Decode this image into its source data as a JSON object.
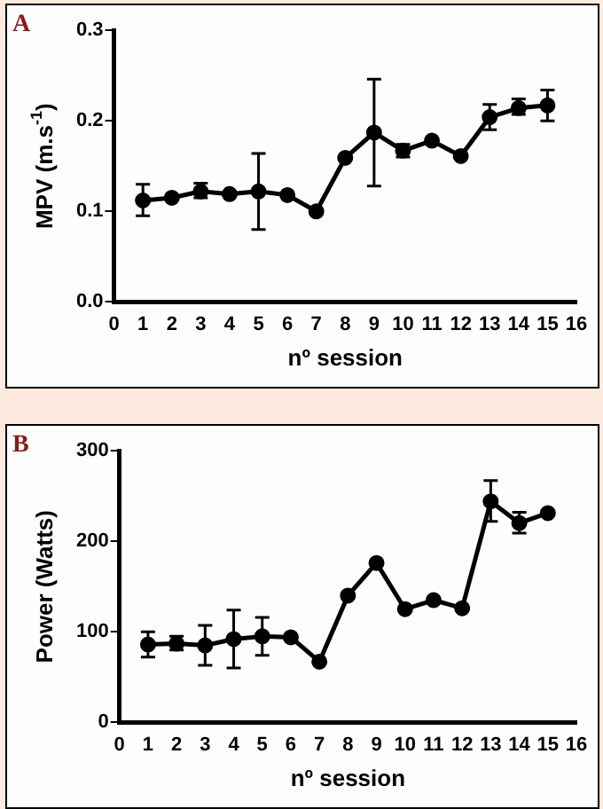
{
  "chart_data": [
    {
      "type": "line",
      "annotations": [
        "A"
      ],
      "xlabel": "nº session",
      "ylabel": "MPV (m.s$^{-1}$)",
      "marker": "circle",
      "xlim": [
        0,
        16
      ],
      "xticks": [
        0,
        1,
        2,
        3,
        4,
        5,
        6,
        7,
        8,
        9,
        10,
        11,
        12,
        13,
        14,
        15,
        16
      ],
      "ylim": [
        0,
        0.3
      ],
      "yticks": [
        {
          "value": 0,
          "label": "0.0"
        },
        0.1,
        0.2,
        0.3
      ],
      "x": [
        1,
        2,
        3,
        4,
        5,
        6,
        7,
        8,
        9,
        10,
        11,
        12,
        13,
        14,
        15
      ],
      "series": [
        {
          "color": "#000000",
          "values": [
            0.112,
            0.115,
            0.122,
            0.119,
            0.122,
            0.118,
            0.1,
            0.159,
            0.187,
            0.167,
            0.178,
            0.161,
            0.204,
            0.214,
            0.217
          ],
          "errors": [
            [
              0.095,
              0.13
            ],
            null,
            [
              0.115,
              0.131
            ],
            null,
            [
              0.08,
              0.164
            ],
            null,
            null,
            null,
            [
              0.128,
              0.246
            ],
            [
              0.16,
              0.174
            ],
            null,
            null,
            [
              0.19,
              0.218
            ],
            [
              0.207,
              0.224
            ],
            [
              0.2,
              0.234
            ]
          ]
        }
      ]
    },
    {
      "type": "line",
      "annotations": [
        "B"
      ],
      "xlabel": "nº session",
      "ylabel": "Power (Watts)",
      "marker": "circle",
      "xlim": [
        0,
        16
      ],
      "xticks": [
        0,
        1,
        2,
        3,
        4,
        5,
        6,
        7,
        8,
        9,
        10,
        11,
        12,
        13,
        14,
        15,
        16
      ],
      "ylim": [
        0,
        300
      ],
      "yticks": [
        0,
        100,
        200,
        300
      ],
      "x": [
        1,
        2,
        3,
        4,
        5,
        6,
        7,
        8,
        9,
        10,
        11,
        12,
        13,
        14,
        15
      ],
      "series": [
        {
          "color": "#000000",
          "values": [
            86,
            87,
            85,
            92,
            95,
            94,
            67,
            140,
            176,
            125,
            135,
            126,
            244,
            220,
            231
          ],
          "errors": [
            [
              72,
              100
            ],
            [
              80,
              95
            ],
            [
              63,
              107
            ],
            [
              60,
              124
            ],
            [
              74,
              116
            ],
            null,
            null,
            null,
            null,
            null,
            null,
            null,
            [
              222,
              267
            ],
            [
              209,
              232
            ],
            null
          ]
        }
      ]
    }
  ]
}
